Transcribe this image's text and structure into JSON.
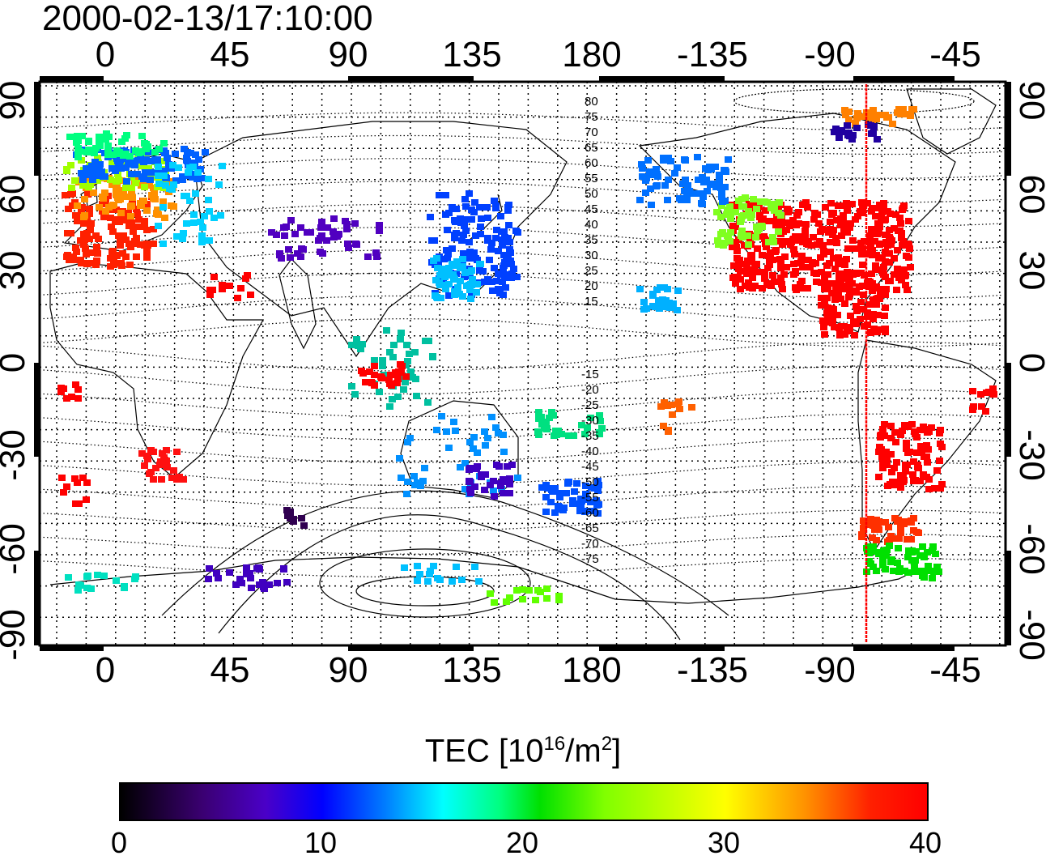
{
  "title": "2000-02-13/17:10:00",
  "lon_ticks": [
    "0",
    "45",
    "90",
    "135",
    "180",
    "-135",
    "-90",
    "-45"
  ],
  "lat_ticks": [
    "90",
    "60",
    "30",
    "0",
    "-30",
    "-60",
    "-90"
  ],
  "contour_labels_north": [
    "80",
    "75",
    "70",
    "65",
    "60",
    "55",
    "50",
    "45",
    "40",
    "35",
    "30",
    "25",
    "20",
    "15"
  ],
  "contour_labels_south": [
    "-15",
    "-20",
    "-25",
    "-30",
    "-35",
    "-40",
    "-45",
    "-50",
    "-55",
    "-60",
    "-65",
    "-70",
    "-75"
  ],
  "colorbar": {
    "title_main": "TEC  [10",
    "title_sup1": "16",
    "title_mid": "/m",
    "title_sup2": "2",
    "title_end": "]",
    "ticks": [
      "0",
      "10",
      "20",
      "30",
      "40"
    ],
    "range": [
      0,
      40
    ]
  },
  "terminator_longitude": -78,
  "colors": {
    "terminator": "#ff0000",
    "frame": "#000000"
  }
}
